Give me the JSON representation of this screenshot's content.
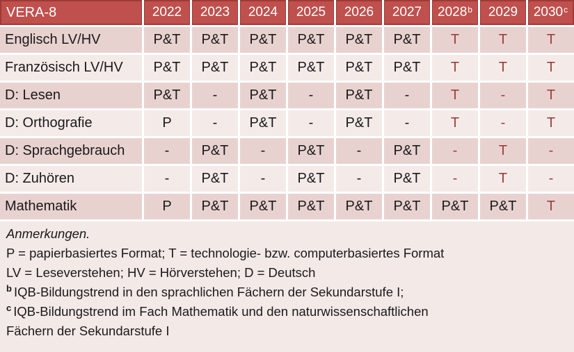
{
  "colors": {
    "header_bg": "#c0504d",
    "header_border": "#9c3a37",
    "row_dark": "#e8d2d0",
    "row_light": "#f4ebe9",
    "notes_bg": "#f3e9e7",
    "red_text": "#9e3d3a",
    "text": "#1a1a1a",
    "gap": "#ffffff"
  },
  "table": {
    "title": "VERA-8",
    "years": [
      {
        "label": "2022",
        "sup": ""
      },
      {
        "label": "2023",
        "sup": ""
      },
      {
        "label": "2024",
        "sup": ""
      },
      {
        "label": "2025",
        "sup": ""
      },
      {
        "label": "2026",
        "sup": ""
      },
      {
        "label": "2027",
        "sup": ""
      },
      {
        "label": "2028",
        "sup": "b"
      },
      {
        "label": "2029",
        "sup": ""
      },
      {
        "label": "2030",
        "sup": "c"
      }
    ],
    "rows": [
      {
        "label": "Englisch LV/HV",
        "shade": "dark",
        "values": [
          {
            "text": "P&T",
            "red": false
          },
          {
            "text": "P&T",
            "red": false
          },
          {
            "text": "P&T",
            "red": false
          },
          {
            "text": "P&T",
            "red": false
          },
          {
            "text": "P&T",
            "red": false
          },
          {
            "text": "P&T",
            "red": false
          },
          {
            "text": "T",
            "red": true
          },
          {
            "text": "T",
            "red": true
          },
          {
            "text": "T",
            "red": true
          }
        ]
      },
      {
        "label": "Französisch LV/HV",
        "shade": "light",
        "values": [
          {
            "text": "P&T",
            "red": false
          },
          {
            "text": "P&T",
            "red": false
          },
          {
            "text": "P&T",
            "red": false
          },
          {
            "text": "P&T",
            "red": false
          },
          {
            "text": "P&T",
            "red": false
          },
          {
            "text": "P&T",
            "red": false
          },
          {
            "text": "T",
            "red": true
          },
          {
            "text": "T",
            "red": true
          },
          {
            "text": "T",
            "red": true
          }
        ]
      },
      {
        "label": "D: Lesen",
        "shade": "dark",
        "values": [
          {
            "text": "P&T",
            "red": false
          },
          {
            "text": "-",
            "red": false
          },
          {
            "text": "P&T",
            "red": false
          },
          {
            "text": "-",
            "red": false
          },
          {
            "text": "P&T",
            "red": false
          },
          {
            "text": "-",
            "red": false
          },
          {
            "text": "T",
            "red": true
          },
          {
            "text": "-",
            "red": true
          },
          {
            "text": "T",
            "red": true
          }
        ]
      },
      {
        "label": "D: Orthografie",
        "shade": "light",
        "values": [
          {
            "text": "P",
            "red": false
          },
          {
            "text": "-",
            "red": false
          },
          {
            "text": "P&T",
            "red": false
          },
          {
            "text": "-",
            "red": false
          },
          {
            "text": "P&T",
            "red": false
          },
          {
            "text": "-",
            "red": false
          },
          {
            "text": "T",
            "red": true
          },
          {
            "text": "-",
            "red": true
          },
          {
            "text": "T",
            "red": true
          }
        ]
      },
      {
        "label": "D: Sprachgebrauch",
        "shade": "dark",
        "values": [
          {
            "text": "-",
            "red": false
          },
          {
            "text": "P&T",
            "red": false
          },
          {
            "text": "-",
            "red": false
          },
          {
            "text": "P&T",
            "red": false
          },
          {
            "text": "-",
            "red": false
          },
          {
            "text": "P&T",
            "red": false
          },
          {
            "text": "-",
            "red": true
          },
          {
            "text": "T",
            "red": true
          },
          {
            "text": "-",
            "red": true
          }
        ]
      },
      {
        "label": "D: Zuhören",
        "shade": "light",
        "values": [
          {
            "text": "-",
            "red": false
          },
          {
            "text": "P&T",
            "red": false
          },
          {
            "text": "-",
            "red": false
          },
          {
            "text": "P&T",
            "red": false
          },
          {
            "text": "-",
            "red": false
          },
          {
            "text": "P&T",
            "red": false
          },
          {
            "text": "-",
            "red": true
          },
          {
            "text": "T",
            "red": true
          },
          {
            "text": "-",
            "red": true
          }
        ]
      },
      {
        "label": "Mathematik",
        "shade": "dark",
        "values": [
          {
            "text": "P",
            "red": false
          },
          {
            "text": "P&T",
            "red": false
          },
          {
            "text": "P&T",
            "red": false
          },
          {
            "text": "P&T",
            "red": false
          },
          {
            "text": "P&T",
            "red": false
          },
          {
            "text": "P&T",
            "red": false
          },
          {
            "text": "P&T",
            "red": false
          },
          {
            "text": "P&T",
            "red": false
          },
          {
            "text": "T",
            "red": true
          }
        ]
      }
    ]
  },
  "notes": {
    "lines": [
      {
        "text": "Anmerkungen.",
        "italic": true,
        "sup": ""
      },
      {
        "text": "P = papierbasiertes Format; T = technologie- bzw. computerbasiertes Format",
        "italic": false,
        "sup": ""
      },
      {
        "text": "LV = Leseverstehen; HV = Hörverstehen; D = Deutsch",
        "italic": false,
        "sup": ""
      },
      {
        "text": "IQB-Bildungstrend in den sprachlichen Fächern der Sekundarstufe I;",
        "italic": false,
        "sup": "b"
      },
      {
        "text": "IQB-Bildungstrend im Fach Mathematik und den naturwissenschaftlichen",
        "italic": false,
        "sup": "c"
      },
      {
        "text": "Fächern der Sekundarstufe I",
        "italic": false,
        "sup": ""
      }
    ]
  }
}
